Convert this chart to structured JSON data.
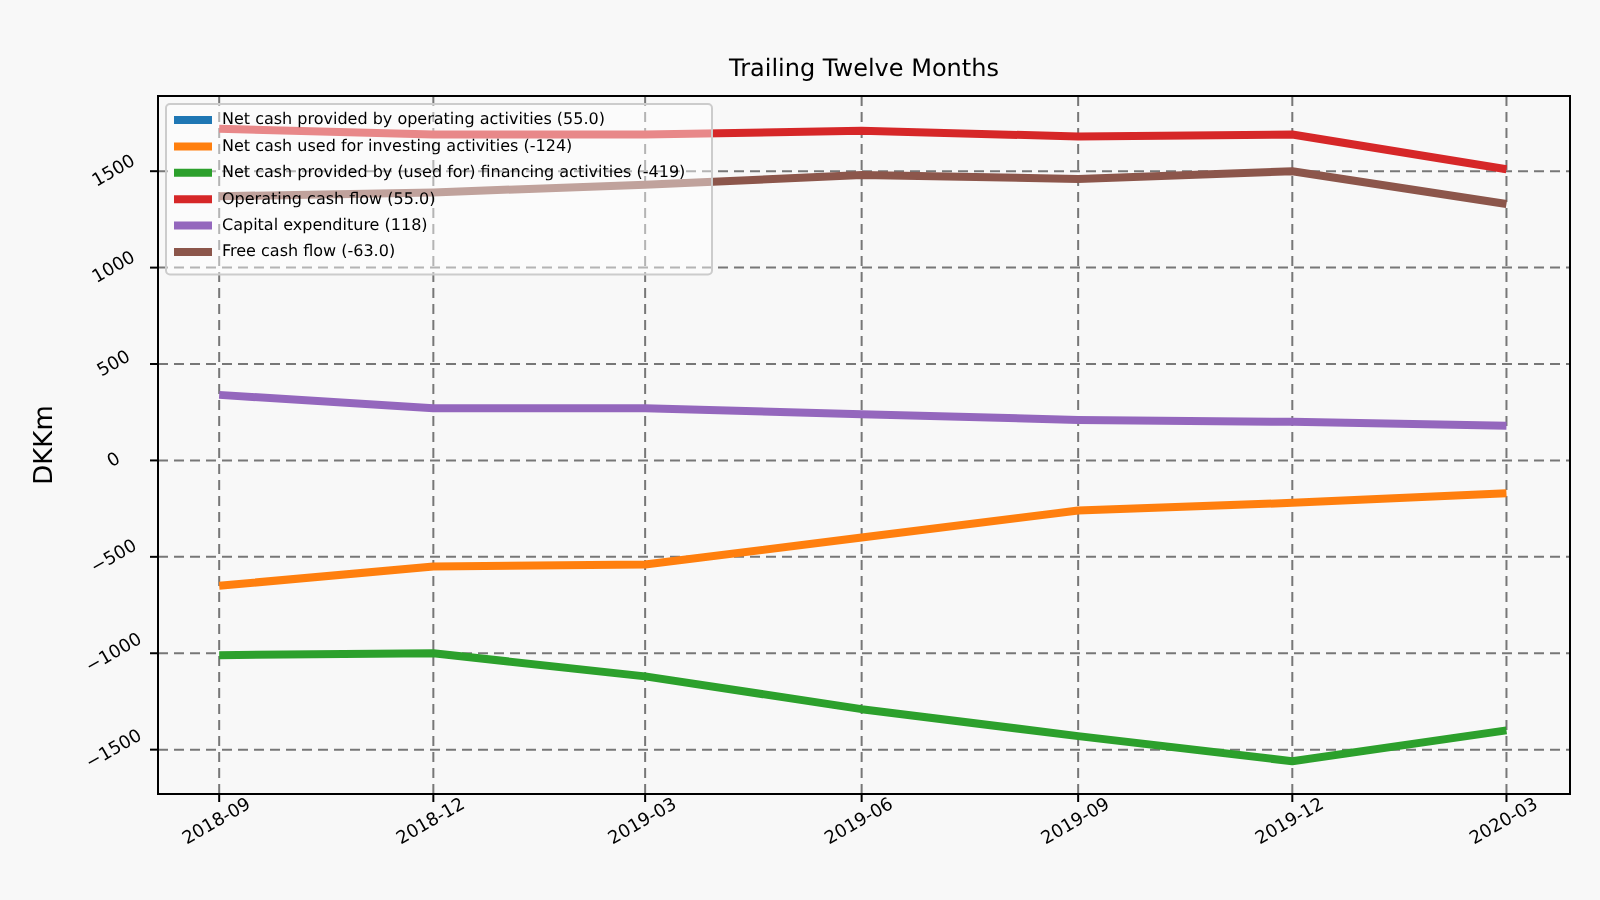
{
  "chart_data": {
    "type": "line",
    "title": "Trailing Twelve Months",
    "ylabel": "DKKm",
    "x": [
      "2018-09",
      "2018-12",
      "2019-03",
      "2019-06",
      "2019-09",
      "2019-12",
      "2020-03"
    ],
    "xlim": [
      "2018-08-06",
      "2020-03-28"
    ],
    "xticks": [
      "2018-09",
      "2018-12",
      "2019-03",
      "2019-06",
      "2019-09",
      "2019-12",
      "2020-03"
    ],
    "ylim": [
      -1730,
      1890
    ],
    "yticks": [
      {
        "value": -1500,
        "label": "−1500"
      },
      {
        "value": -1000,
        "label": "−1000"
      },
      {
        "value": -500,
        "label": "−500"
      },
      0,
      500,
      1000,
      1500
    ],
    "series": [
      {
        "name": "Net cash provided by operating activities (55.0)",
        "color": "#1f77b4",
        "values": [
          null,
          null,
          null,
          null,
          null,
          null,
          null
        ]
      },
      {
        "name": "Net cash used for investing activities (-124)",
        "color": "#ff7f0e",
        "values": [
          -650,
          -550,
          -540,
          -400,
          -260,
          -220,
          -170
        ]
      },
      {
        "name": "Net cash provided by (used for) financing activities (-419)",
        "color": "#2ca02c",
        "values": [
          -1010,
          -1000,
          -1120,
          -1290,
          -1430,
          -1560,
          -1400
        ]
      },
      {
        "name": "Operating cash flow (55.0)",
        "color": "#d62728",
        "values": [
          1720,
          1690,
          1690,
          1710,
          1680,
          1690,
          1510
        ]
      },
      {
        "name": "Capital expenditure (118)",
        "color": "#9467bd",
        "values": [
          340,
          270,
          270,
          240,
          210,
          200,
          180
        ]
      },
      {
        "name": "Free cash flow (-63.0)",
        "color": "#8c564b",
        "values": [
          1370,
          1390,
          1430,
          1480,
          1460,
          1500,
          1330
        ]
      }
    ],
    "grid": true,
    "legend": "top left",
    "line_style": "solid"
  }
}
